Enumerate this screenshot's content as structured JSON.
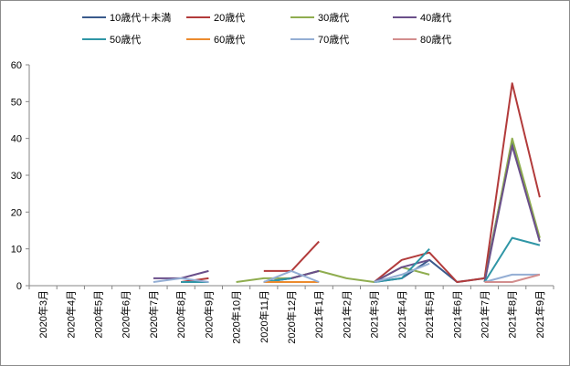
{
  "chart_data": {
    "type": "line",
    "title": "",
    "xlabel": "",
    "ylabel": "",
    "ylim": [
      0,
      60
    ],
    "yticks": [
      0,
      10,
      20,
      30,
      40,
      50,
      60
    ],
    "grid": false,
    "legend_position": "top",
    "categories": [
      "2020年3月",
      "2020年4月",
      "2020年5月",
      "2020年6月",
      "2020年7月",
      "2020年8月",
      "2020年9月",
      "2020年10月",
      "2020年11月",
      "2020年12月",
      "2021年1月",
      "2021年2月",
      "2021年3月",
      "2021年4月",
      "2021年5月",
      "2021年6月",
      "2021年7月",
      "2021年8月",
      "2021年9月"
    ],
    "series": [
      {
        "name": "10歳代＋未満",
        "color": "#3a5a8c",
        "values": [
          null,
          null,
          null,
          null,
          null,
          1,
          1,
          null,
          1,
          2,
          4,
          null,
          1,
          2,
          7,
          1,
          2,
          39,
          12
        ]
      },
      {
        "name": "20歳代",
        "color": "#b23b3b",
        "values": [
          null,
          null,
          null,
          null,
          null,
          1,
          2,
          null,
          4,
          4,
          12,
          null,
          1,
          7,
          9,
          1,
          2,
          55,
          24
        ]
      },
      {
        "name": "30歳代",
        "color": "#8fad4f",
        "values": [
          null,
          null,
          null,
          null,
          null,
          null,
          null,
          1,
          2,
          2,
          4,
          2,
          1,
          5,
          3,
          null,
          1,
          40,
          13
        ]
      },
      {
        "name": "40歳代",
        "color": "#6a4f8a",
        "values": [
          null,
          null,
          null,
          null,
          2,
          2,
          4,
          null,
          1,
          2,
          4,
          null,
          1,
          5,
          7,
          null,
          1,
          38,
          12
        ]
      },
      {
        "name": "50歳代",
        "color": "#2f96a6",
        "values": [
          null,
          null,
          null,
          null,
          null,
          1,
          1,
          null,
          1,
          2,
          null,
          null,
          1,
          2,
          10,
          null,
          1,
          13,
          11
        ]
      },
      {
        "name": "60歳代",
        "color": "#ec8b2e",
        "values": [
          null,
          null,
          null,
          null,
          null,
          null,
          null,
          null,
          1,
          1,
          1,
          null,
          null,
          null,
          null,
          null,
          null,
          null,
          null
        ]
      },
      {
        "name": "70歳代",
        "color": "#94aed4",
        "values": [
          null,
          null,
          null,
          null,
          1,
          2,
          1,
          null,
          1,
          4,
          1,
          null,
          1,
          3,
          6,
          null,
          1,
          3,
          3
        ]
      },
      {
        "name": "80歳代",
        "color": "#d38e8e",
        "values": [
          null,
          null,
          null,
          null,
          null,
          null,
          null,
          null,
          null,
          null,
          null,
          null,
          null,
          null,
          null,
          null,
          1,
          1,
          3
        ]
      }
    ]
  }
}
